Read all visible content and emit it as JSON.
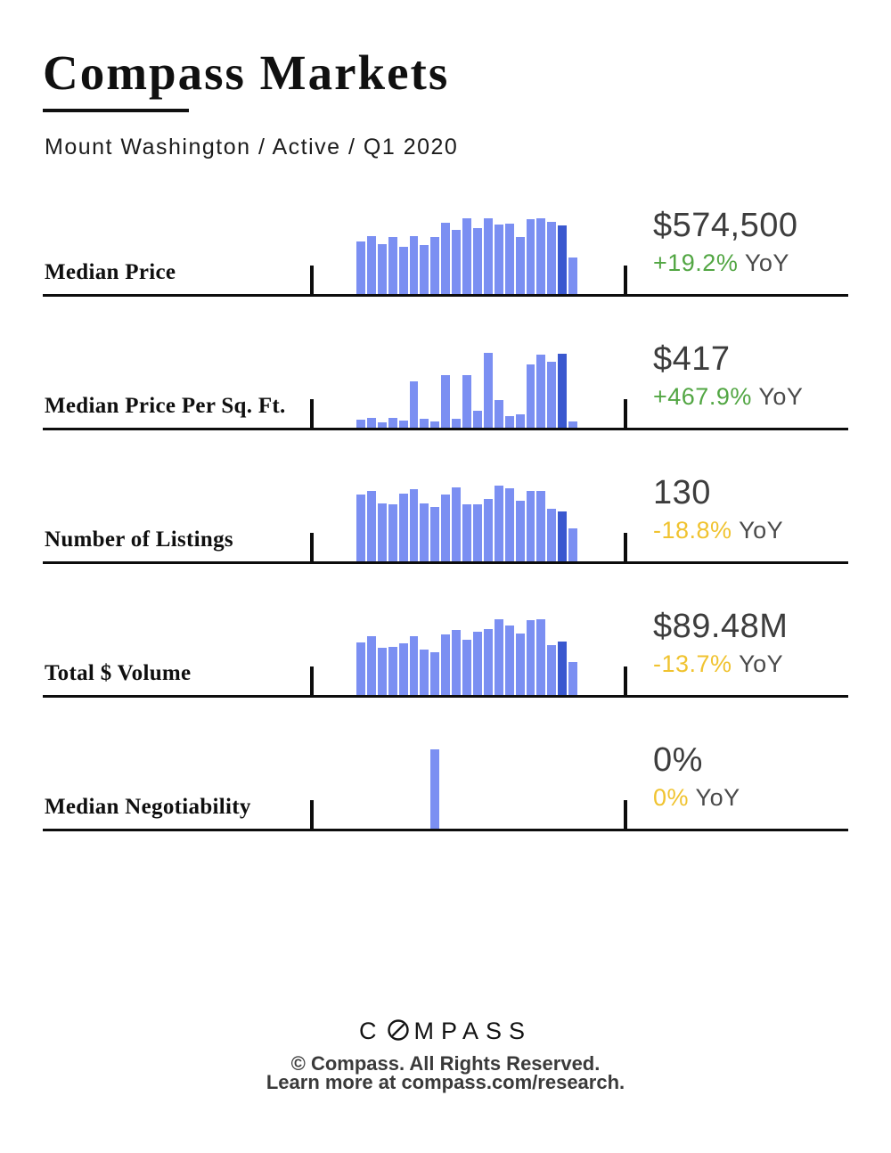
{
  "header": {
    "title": "Compass Markets",
    "subtitle": "Mount Washington / Active / Q1 2020"
  },
  "colors": {
    "bar_light": "#7b8ff2",
    "bar_dark": "#3a58cf",
    "green": "#52a643",
    "yellow": "#f0c330",
    "value_text": "#3d3d3d",
    "yoy_suffix_text": "#4a4a4a",
    "rule": "#0d0d0d"
  },
  "rows": [
    {
      "label": "Median Price",
      "value": "$574,500",
      "yoy_pct": "+19.2%",
      "yoy_color": "green",
      "yoy_suffix": "YoY"
    },
    {
      "label": "Median Price Per Sq. Ft.",
      "value": "$417",
      "yoy_pct": "+467.9%",
      "yoy_color": "green",
      "yoy_suffix": "YoY"
    },
    {
      "label": "Number of Listings",
      "value": "130",
      "yoy_pct": "-18.8%",
      "yoy_color": "yellow",
      "yoy_suffix": "YoY"
    },
    {
      "label": "Total $ Volume",
      "value": "$89.48M",
      "yoy_pct": "-13.7%",
      "yoy_color": "yellow",
      "yoy_suffix": "YoY"
    },
    {
      "label": "Median Negotiability",
      "value": "0%",
      "yoy_pct": "0%",
      "yoy_color": "yellow",
      "yoy_suffix": "YoY"
    }
  ],
  "chart_data": [
    {
      "type": "bar",
      "title": "Median Price sparkline",
      "values_normalized": [
        0.61,
        0.68,
        0.58,
        0.67,
        0.55,
        0.68,
        0.57,
        0.67,
        0.83,
        0.75,
        0.89,
        0.77,
        0.89,
        0.81,
        0.82,
        0.67,
        0.87,
        0.89,
        0.84,
        0.8,
        0.43
      ],
      "highlight_index": 19,
      "ylim": [
        0,
        1
      ],
      "axis_labels_shown": false,
      "current_value": "$574,500",
      "yoy_change": "+19.2%"
    },
    {
      "type": "bar",
      "title": "Median Price Per Sq. Ft. sparkline",
      "values_normalized": [
        0.09,
        0.11,
        0.06,
        0.11,
        0.08,
        0.54,
        0.1,
        0.07,
        0.61,
        0.1,
        0.61,
        0.2,
        0.87,
        0.32,
        0.14,
        0.16,
        0.74,
        0.85,
        0.77,
        0.86,
        0.07
      ],
      "highlight_index": 19,
      "ylim": [
        0,
        1
      ],
      "axis_labels_shown": false,
      "current_value": "$417",
      "yoy_change": "+467.9%"
    },
    {
      "type": "bar",
      "title": "Number of Listings sparkline",
      "values_normalized": [
        0.78,
        0.82,
        0.68,
        0.67,
        0.79,
        0.84,
        0.68,
        0.64,
        0.78,
        0.86,
        0.67,
        0.67,
        0.73,
        0.89,
        0.85,
        0.71,
        0.82,
        0.82,
        0.61,
        0.58,
        0.39
      ],
      "highlight_index": 19,
      "ylim": [
        0,
        1
      ],
      "axis_labels_shown": false,
      "current_value": "130",
      "yoy_change": "-18.8%"
    },
    {
      "type": "bar",
      "title": "Total $ Volume sparkline",
      "values_normalized": [
        0.61,
        0.69,
        0.55,
        0.56,
        0.6,
        0.69,
        0.53,
        0.5,
        0.71,
        0.76,
        0.65,
        0.74,
        0.77,
        0.89,
        0.81,
        0.72,
        0.88,
        0.89,
        0.58,
        0.63,
        0.39
      ],
      "highlight_index": 19,
      "ylim": [
        0,
        1
      ],
      "axis_labels_shown": false,
      "current_value": "$89.48M",
      "yoy_change": "-13.7%"
    },
    {
      "type": "bar",
      "title": "Median Negotiability sparkline",
      "values_normalized": [
        0,
        0,
        0,
        0,
        0,
        0,
        0,
        0.93,
        0,
        0,
        0,
        0,
        0,
        0,
        0,
        0,
        0,
        0,
        0,
        0,
        0
      ],
      "highlight_index": null,
      "ylim": [
        0,
        1
      ],
      "axis_labels_shown": false,
      "current_value": "0%",
      "yoy_change": "0%"
    }
  ],
  "footer": {
    "wordmark_prefix": "C",
    "wordmark_suffix": "MPASS",
    "logo_icon": "compass-slashed-o",
    "line1": "© Compass. All Rights Reserved.",
    "line2": "Learn more at compass.com/research."
  }
}
